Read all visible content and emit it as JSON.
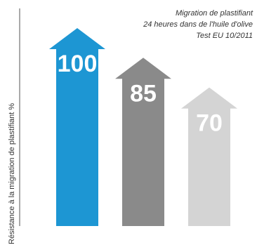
{
  "chart_data": {
    "type": "bar",
    "ylabel": "Résistance à la migration de plastifiant %",
    "annotation": [
      "Migration de plastifiant",
      "24 heures dans de l'huile d'olive",
      "Test EU 10/2011"
    ],
    "categories": [
      "",
      "",
      ""
    ],
    "values": [
      100,
      85,
      70
    ],
    "data_labels": [
      "100",
      "85",
      "70"
    ],
    "colors": [
      "#1d96d3",
      "#8a8a8a",
      "#d4d4d4"
    ],
    "ylim": [
      0,
      100
    ],
    "grid": false,
    "legend": "none"
  }
}
